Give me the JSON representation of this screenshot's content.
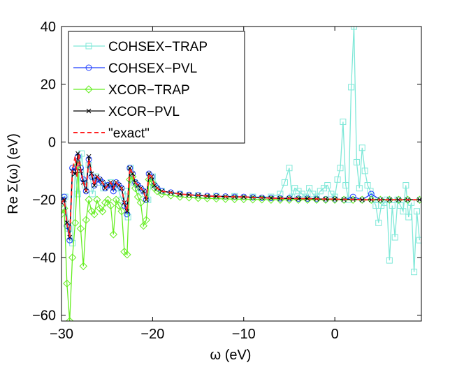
{
  "chart_data": {
    "type": "line",
    "title": "",
    "xlabel": "ω (eV)",
    "ylabel": "Re Σ(ω) (eV)",
    "xlim": [
      -30,
      9.5
    ],
    "ylim": [
      -62,
      40
    ],
    "xticks": [
      -30,
      -20,
      -10,
      0
    ],
    "yticks": [
      -60,
      -40,
      -20,
      0,
      20,
      40
    ],
    "xtick_labels": [
      "−30",
      "−20",
      "−10",
      "0"
    ],
    "ytick_labels": [
      "−60",
      "−40",
      "−20",
      "0",
      "20",
      "40"
    ],
    "grid": false,
    "legend_position": "top-left",
    "series": [
      {
        "name": "COHSEX−TRAP",
        "color": "#7fe8d8",
        "marker": "square",
        "dash": "solid",
        "x": [
          -30,
          -29.6,
          -29.2,
          -28.8,
          -28.5,
          -28.2,
          -27.8,
          -27.4,
          -27,
          -26.6,
          -26.2,
          -25.8,
          -25.4,
          -25,
          -24.6,
          -24.2,
          -23.8,
          -23.4,
          -23,
          -22.7,
          -22.4,
          -22,
          -21.6,
          -21.2,
          -20.8,
          -20.5,
          -20,
          -19,
          -17,
          -15,
          -13,
          -11,
          -9,
          -7,
          -6,
          -5.5,
          -5,
          -4.7,
          -4.4,
          -4,
          -3.6,
          -3.2,
          -2.8,
          -2.4,
          -2,
          -1.6,
          -1.2,
          -0.8,
          -0.4,
          0,
          0.3,
          0.6,
          0.9,
          1.2,
          1.5,
          1.8,
          2.1,
          2.4,
          2.7,
          3,
          3.3,
          3.6,
          3.9,
          4.2,
          4.5,
          4.8,
          5.1,
          5.4,
          5.7,
          6,
          6.3,
          6.6,
          6.9,
          7.2,
          7.5,
          7.8,
          8.1,
          8.4,
          8.7,
          9,
          9.3
        ],
        "y": [
          -21,
          -19,
          -30,
          -35,
          -10,
          -18,
          -4,
          -15,
          -8,
          -18,
          -12,
          -14,
          -16,
          -15,
          -14,
          -15,
          -16,
          -20,
          -17,
          -26,
          -9,
          -14,
          -16,
          -17,
          -18,
          -20,
          -12,
          -17,
          -18,
          -18.5,
          -18.7,
          -18.8,
          -19,
          -19,
          -18,
          -14,
          -9,
          -19,
          -16,
          -17,
          -18,
          -19,
          -16,
          -18,
          -19,
          -17,
          -16,
          -15,
          -18,
          -19,
          -13,
          -9,
          7,
          -15,
          -20,
          19,
          40,
          -7,
          -16,
          -2,
          -10,
          -15,
          -17,
          -20,
          -22,
          -28,
          -22,
          -21,
          -20,
          -41,
          -22,
          -33,
          -20,
          -22,
          -24,
          -15,
          -26,
          -21,
          -45,
          -24,
          -34
        ]
      },
      {
        "name": "COHSEX−PVL",
        "color": "#1f3fff",
        "marker": "circle",
        "dash": "solid",
        "x": [
          -30,
          -29.7,
          -29.4,
          -29.1,
          -28.8,
          -28.5,
          -28.2,
          -27.9,
          -27.6,
          -27.3,
          -27,
          -26.7,
          -26.4,
          -26.1,
          -25.8,
          -25.5,
          -25.2,
          -24.9,
          -24.6,
          -24.3,
          -24,
          -23.7,
          -23.4,
          -23.1,
          -22.8,
          -22.5,
          -22.2,
          -21.9,
          -21.6,
          -21.3,
          -21,
          -20.7,
          -20.4,
          -20.1,
          -19.8,
          -19.5,
          -19,
          -18,
          -17,
          -16,
          -15,
          -14,
          -13,
          -12,
          -11,
          -10,
          -9,
          -8,
          -7,
          -6,
          -5,
          -4,
          -3,
          -2,
          -1,
          0,
          1,
          2,
          3,
          4,
          5,
          6,
          7,
          8,
          9.3
        ],
        "y": [
          -20,
          -19,
          -29,
          -34,
          -9,
          -10,
          -5,
          -9,
          -13,
          -17,
          -6,
          -12,
          -15,
          -13,
          -13,
          -14,
          -16,
          -15,
          -15,
          -17,
          -14,
          -15,
          -16,
          -22,
          -25,
          -9,
          -11,
          -14,
          -15,
          -16,
          -17,
          -20,
          -11,
          -12,
          -15,
          -16,
          -17,
          -17.5,
          -18,
          -18.3,
          -18.5,
          -18.7,
          -18.8,
          -18.9,
          -19,
          -19,
          -19.2,
          -19.3,
          -19.4,
          -19.5,
          -19.5,
          -19.6,
          -19.6,
          -19.7,
          -19.8,
          -19.8,
          -20,
          -19,
          -20,
          -18,
          -20,
          -20,
          -20,
          -20,
          -20
        ]
      },
      {
        "name": "XCOR−TRAP",
        "color": "#66ee22",
        "marker": "diamond",
        "dash": "solid",
        "x": [
          -30,
          -29.7,
          -29.4,
          -29.1,
          -28.8,
          -28.5,
          -28.2,
          -27.9,
          -27.6,
          -27.3,
          -27,
          -26.7,
          -26.4,
          -26.1,
          -25.8,
          -25.5,
          -25.2,
          -24.9,
          -24.6,
          -24.3,
          -24,
          -23.7,
          -23.4,
          -23.1,
          -22.8,
          -22.5,
          -22.2,
          -21.9,
          -21.6,
          -21.3,
          -21,
          -20.7,
          -20.4,
          -20.1,
          -19.8,
          -19.5,
          -19,
          -18,
          -17,
          -16,
          -15,
          -14,
          -13,
          -12,
          -11,
          -10,
          -9,
          -8,
          -7,
          -6,
          -5,
          -4,
          -3,
          -2,
          -1,
          0,
          1,
          2,
          3,
          4,
          5,
          6,
          7,
          8,
          9.3
        ],
        "y": [
          -25,
          -23,
          -49,
          -62,
          -40,
          -28,
          -8,
          -30,
          -43,
          -27,
          -20,
          -24,
          -25,
          -20,
          -23,
          -24,
          -21,
          -20,
          -22,
          -32,
          -20,
          -22,
          -24,
          -38,
          -39,
          -13,
          -12,
          -16,
          -19,
          -21,
          -29,
          -27,
          -13,
          -14,
          -16,
          -17,
          -18,
          -18.5,
          -19,
          -19.2,
          -19.4,
          -19.5,
          -19.6,
          -19.7,
          -19.8,
          -19.8,
          -19.9,
          -19.9,
          -20,
          -20,
          -20,
          -20,
          -20,
          -20,
          -20,
          -20,
          -20,
          -20,
          -20,
          -20,
          -20,
          -20,
          -20,
          -20,
          -20
        ]
      },
      {
        "name": "XCOR−PVL",
        "color": "#000000",
        "marker": "x",
        "dash": "solid",
        "x": [
          -30,
          -29.7,
          -29.4,
          -29.1,
          -28.8,
          -28.5,
          -28.2,
          -27.9,
          -27.6,
          -27.3,
          -27,
          -26.7,
          -26.4,
          -26.1,
          -25.8,
          -25.5,
          -25.2,
          -24.9,
          -24.6,
          -24.3,
          -24,
          -23.7,
          -23.4,
          -23.1,
          -22.8,
          -22.5,
          -22.2,
          -21.9,
          -21.6,
          -21.3,
          -21,
          -20.7,
          -20.4,
          -20.1,
          -19.8,
          -19.5,
          -19,
          -18,
          -17,
          -16,
          -15,
          -14,
          -13,
          -12,
          -11,
          -10,
          -9,
          -8,
          -7,
          -6,
          -5,
          -4,
          -3,
          -2,
          -1,
          0,
          1,
          2,
          3,
          4,
          5,
          6,
          7,
          8,
          9.3
        ],
        "y": [
          -21,
          -20,
          -28,
          -33,
          -10,
          -11,
          -4,
          -10,
          -14,
          -17,
          -5,
          -11,
          -15,
          -12,
          -13,
          -14,
          -16,
          -15,
          -14,
          -16,
          -14,
          -15,
          -16,
          -21,
          -24,
          -9,
          -11,
          -14,
          -15,
          -16,
          -17,
          -20,
          -11,
          -12,
          -15,
          -16,
          -17,
          -17.5,
          -18,
          -18.3,
          -18.5,
          -18.7,
          -18.8,
          -18.9,
          -19,
          -19,
          -19.2,
          -19.3,
          -19.4,
          -19.5,
          -19.5,
          -19.6,
          -19.6,
          -19.7,
          -19.8,
          -19.8,
          -19.9,
          -19.9,
          -20,
          -20,
          -20,
          -20,
          -20,
          -20,
          -20
        ]
      },
      {
        "name": "\"exact\"",
        "color": "#ff2222",
        "marker": "none",
        "dash": "dashed",
        "x": [
          -30,
          -29.7,
          -29.4,
          -29.1,
          -28.8,
          -28.5,
          -28.3,
          -28.1,
          -27.9,
          -27.6,
          -27.3,
          -27,
          -26.7,
          -26.4,
          -26.1,
          -25.8,
          -25.5,
          -25.2,
          -24.9,
          -24.6,
          -24.3,
          -24,
          -23.7,
          -23.4,
          -23.1,
          -22.8,
          -22.5,
          -22.2,
          -21.9,
          -21.6,
          -21.3,
          -21,
          -20.7,
          -20.4,
          -20.1,
          -19.8,
          -19.5,
          -19,
          -18,
          -17,
          -16,
          -15,
          -14,
          -13,
          -12,
          -11,
          -10,
          -9,
          -8,
          -7,
          -6,
          -5,
          -4,
          -3,
          -2,
          -1,
          0,
          1,
          2,
          3,
          4,
          5,
          6,
          7,
          8,
          9.3
        ],
        "y": [
          -21,
          -20,
          -28,
          -33,
          -10,
          -5,
          -12,
          -4,
          -10,
          -14,
          -17,
          -6,
          -11,
          -15,
          -12,
          -13,
          -14,
          -16,
          -15,
          -14,
          -16,
          -14,
          -15,
          -16,
          -21,
          -24,
          -9,
          -11,
          -14,
          -15,
          -16,
          -17,
          -20,
          -11,
          -12,
          -15,
          -16,
          -17,
          -17.5,
          -18,
          -18.3,
          -18.5,
          -18.7,
          -18.8,
          -18.9,
          -19,
          -19,
          -19.2,
          -19.3,
          -19.4,
          -19.5,
          -19.5,
          -19.6,
          -19.6,
          -19.7,
          -19.8,
          -19.8,
          -19.9,
          -19.9,
          -20,
          -20,
          -20,
          -20,
          -20,
          -20,
          -20
        ]
      }
    ]
  }
}
